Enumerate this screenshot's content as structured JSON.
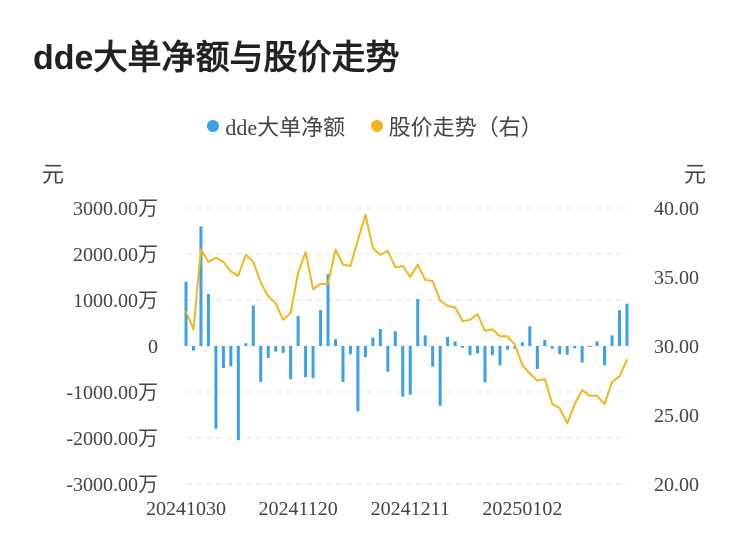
{
  "title": "dde大单净额与股价走势",
  "legend": {
    "series1": "dde大单净额",
    "series2": "股价走势（右）"
  },
  "units": {
    "left": "元",
    "right": "元"
  },
  "colors": {
    "bar": "#3ba0e8",
    "line": "#f2b51b",
    "grid": "#e6e6e6"
  },
  "chart_data": {
    "type": "bar+line",
    "title": "dde大单净额与股价走势",
    "y_left": {
      "label": "元",
      "range": [
        -3000,
        3000
      ],
      "ticks": [
        3000,
        2000,
        1000,
        0,
        -1000,
        -2000,
        -3000
      ],
      "tick_labels": [
        "3000.00万",
        "2000.00万",
        "1000.00万",
        "0",
        "-1000.00万",
        "-2000.00万",
        "-3000.00万"
      ]
    },
    "y_right": {
      "label": "元",
      "range": [
        20,
        40
      ],
      "ticks": [
        40,
        35,
        30,
        25,
        20
      ],
      "tick_labels": [
        "40.00",
        "35.00",
        "30.00",
        "25.00",
        "20.00"
      ]
    },
    "x_tick_labels": [
      {
        "index": 0,
        "label": "20241030"
      },
      {
        "index": 15,
        "label": "20241120"
      },
      {
        "index": 30,
        "label": "20241211"
      },
      {
        "index": 45,
        "label": "20250102"
      }
    ],
    "series": [
      {
        "name": "dde大单净额",
        "type": "bar",
        "axis": "left",
        "values": [
          1400,
          -100,
          2600,
          1130,
          -1800,
          -480,
          -440,
          -2050,
          60,
          880,
          -780,
          -260,
          -120,
          -150,
          -720,
          650,
          -680,
          -700,
          780,
          1560,
          150,
          -780,
          -180,
          -1420,
          -240,
          180,
          370,
          -560,
          320,
          -1100,
          -1060,
          1020,
          230,
          -450,
          -1300,
          200,
          100,
          -40,
          -200,
          -160,
          -790,
          -200,
          -420,
          -80,
          -60,
          80,
          430,
          -500,
          130,
          -60,
          -180,
          -190,
          -50,
          -360,
          -10,
          100,
          -420,
          230,
          780,
          920
        ]
      },
      {
        "name": "股价走势（右）",
        "type": "line",
        "axis": "right",
        "values": [
          32.5,
          31.2,
          37.0,
          36.1,
          36.4,
          36.1,
          35.4,
          35.1,
          36.6,
          36.1,
          34.6,
          33.6,
          33.1,
          31.9,
          32.4,
          35.3,
          36.8,
          34.1,
          34.5,
          34.5,
          37.0,
          35.9,
          35.8,
          37.7,
          39.5,
          37.1,
          36.6,
          36.9,
          35.7,
          35.8,
          35.0,
          35.9,
          34.8,
          34.7,
          33.3,
          32.9,
          32.8,
          31.8,
          31.9,
          32.3,
          31.1,
          31.2,
          30.7,
          30.7,
          30.1,
          28.6,
          28.0,
          27.5,
          27.6,
          25.8,
          25.5,
          24.4,
          25.8,
          26.8,
          26.4,
          26.4,
          25.8,
          27.4,
          27.8,
          29.0
        ]
      }
    ],
    "grid": true,
    "legend_position": "top-center"
  }
}
